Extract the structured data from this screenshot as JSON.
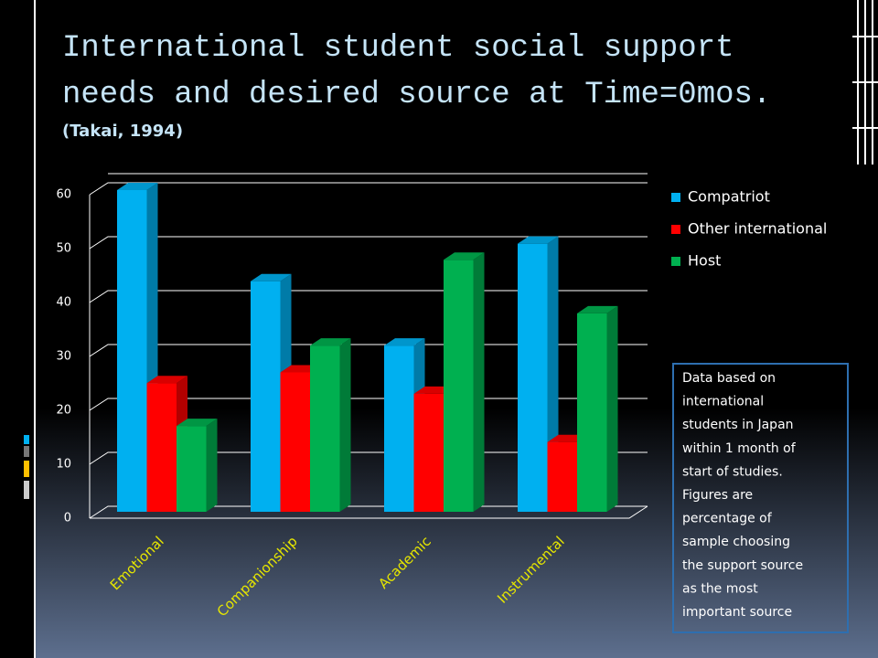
{
  "chart_data": {
    "type": "bar3d",
    "title": "International student social support needs and desired source at Time=0mos.",
    "subtitle": "(Takai, 1994)",
    "categories": [
      "Emotional",
      "Companionship",
      "Academic",
      "Instrumental"
    ],
    "series": [
      {
        "name": "Compatriot",
        "color": "#00b0f0",
        "values": [
          60,
          43,
          31,
          50
        ]
      },
      {
        "name": "Other international",
        "color": "#ff0000",
        "values": [
          24,
          26,
          22,
          13
        ]
      },
      {
        "name": "Host",
        "color": "#00b050",
        "values": [
          16,
          31,
          47,
          37
        ]
      }
    ],
    "ylim": [
      0,
      60
    ],
    "yticks": [
      0,
      10,
      20,
      30,
      40,
      50,
      60
    ],
    "grid": true,
    "legend": "right",
    "note": [
      "Data based on",
      "international",
      "students in Japan",
      "within 1 month of",
      "start of studies.",
      "Figures are",
      "percentage of",
      "sample choosing",
      "the support source",
      "as the most",
      "important source"
    ]
  }
}
